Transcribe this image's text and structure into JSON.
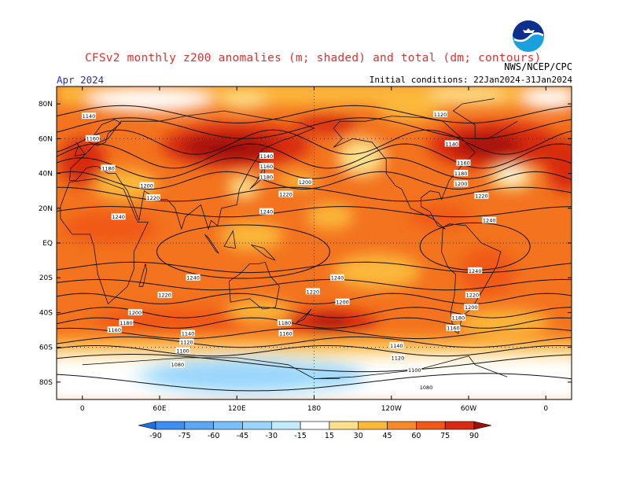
{
  "title": "CFSv2 monthly z200 anomalies (m; shaded) and total (dm; contours)",
  "month": "Apr 2024",
  "initial_conditions": "Initial conditions: 22Jan2024-31Jan2024",
  "source": "NWS/NCEP/CPC",
  "logo_text": "NOAA",
  "lat_ticks": [
    "80N",
    "60N",
    "40N",
    "20N",
    "EQ",
    "20S",
    "40S",
    "60S",
    "80S"
  ],
  "lon_ticks": [
    "0",
    "60E",
    "120E",
    "180",
    "120W",
    "60W",
    "0"
  ],
  "colorbar": {
    "ticks": [
      "-90",
      "-75",
      "-60",
      "-45",
      "-30",
      "-15",
      "15",
      "30",
      "45",
      "60",
      "75",
      "90"
    ],
    "colors": [
      "#1e6fe0",
      "#3c8ef0",
      "#5aa8f5",
      "#78c0f8",
      "#9ad6fb",
      "#c2ecfd",
      "#ffffff",
      "#fde08a",
      "#fbb83a",
      "#f8882a",
      "#f05818",
      "#d82a10",
      "#a01008"
    ]
  },
  "contour_labels": [
    {
      "text": "1140",
      "lon": 5,
      "lat": 73
    },
    {
      "text": "1160",
      "lon": 8,
      "lat": 60
    },
    {
      "text": "1180",
      "lon": 20,
      "lat": 43
    },
    {
      "text": "1200",
      "lon": 50,
      "lat": 33
    },
    {
      "text": "1220",
      "lon": 55,
      "lat": 26
    },
    {
      "text": "1240",
      "lon": 28,
      "lat": 15
    },
    {
      "text": "1140",
      "lon": 143,
      "lat": 50
    },
    {
      "text": "1160",
      "lon": 143,
      "lat": 44
    },
    {
      "text": "1180",
      "lon": 143,
      "lat": 38
    },
    {
      "text": "1200",
      "lon": 173,
      "lat": 35
    },
    {
      "text": "1220",
      "lon": 158,
      "lat": 28
    },
    {
      "text": "1240",
      "lon": 143,
      "lat": 18
    },
    {
      "text": "1120",
      "lon": -82,
      "lat": 74
    },
    {
      "text": "1140",
      "lon": -73,
      "lat": 57
    },
    {
      "text": "1160",
      "lon": -64,
      "lat": 46
    },
    {
      "text": "1180",
      "lon": -66,
      "lat": 40
    },
    {
      "text": "1200",
      "lon": -66,
      "lat": 34
    },
    {
      "text": "1220",
      "lon": -50,
      "lat": 27
    },
    {
      "text": "1240",
      "lon": -44,
      "lat": 13
    },
    {
      "text": "1240",
      "lon": 86,
      "lat": -20
    },
    {
      "text": "1240",
      "lon": 198,
      "lat": -20
    },
    {
      "text": "1220",
      "lon": 64,
      "lat": -30
    },
    {
      "text": "1220",
      "lon": 179,
      "lat": -28
    },
    {
      "text": "1200",
      "lon": -158,
      "lat": -34
    },
    {
      "text": "1200",
      "lon": -58,
      "lat": -37
    },
    {
      "text": "1220",
      "lon": -57,
      "lat": -30
    },
    {
      "text": "1240",
      "lon": -55,
      "lat": -16
    },
    {
      "text": "1200",
      "lon": 41,
      "lat": -40
    },
    {
      "text": "1180",
      "lon": 34,
      "lat": -46
    },
    {
      "text": "1160",
      "lon": 25,
      "lat": -50
    },
    {
      "text": "1180",
      "lon": -68,
      "lat": -43
    },
    {
      "text": "1160",
      "lon": -72,
      "lat": -49
    },
    {
      "text": "1180",
      "lon": 157,
      "lat": -46
    },
    {
      "text": "1160",
      "lon": 158,
      "lat": -52
    },
    {
      "text": "1140",
      "lon": 82,
      "lat": -52
    },
    {
      "text": "1120",
      "lon": 81,
      "lat": -57
    },
    {
      "text": "1100",
      "lon": 78,
      "lat": -62
    },
    {
      "text": "1080",
      "lon": 74,
      "lat": -70
    },
    {
      "text": "1140",
      "lon": -116,
      "lat": -59
    },
    {
      "text": "1120",
      "lon": -115,
      "lat": -66
    },
    {
      "text": "1100",
      "lon": -102,
      "lat": -73
    },
    {
      "text": "1080",
      "lon": -93,
      "lat": -83
    }
  ]
}
